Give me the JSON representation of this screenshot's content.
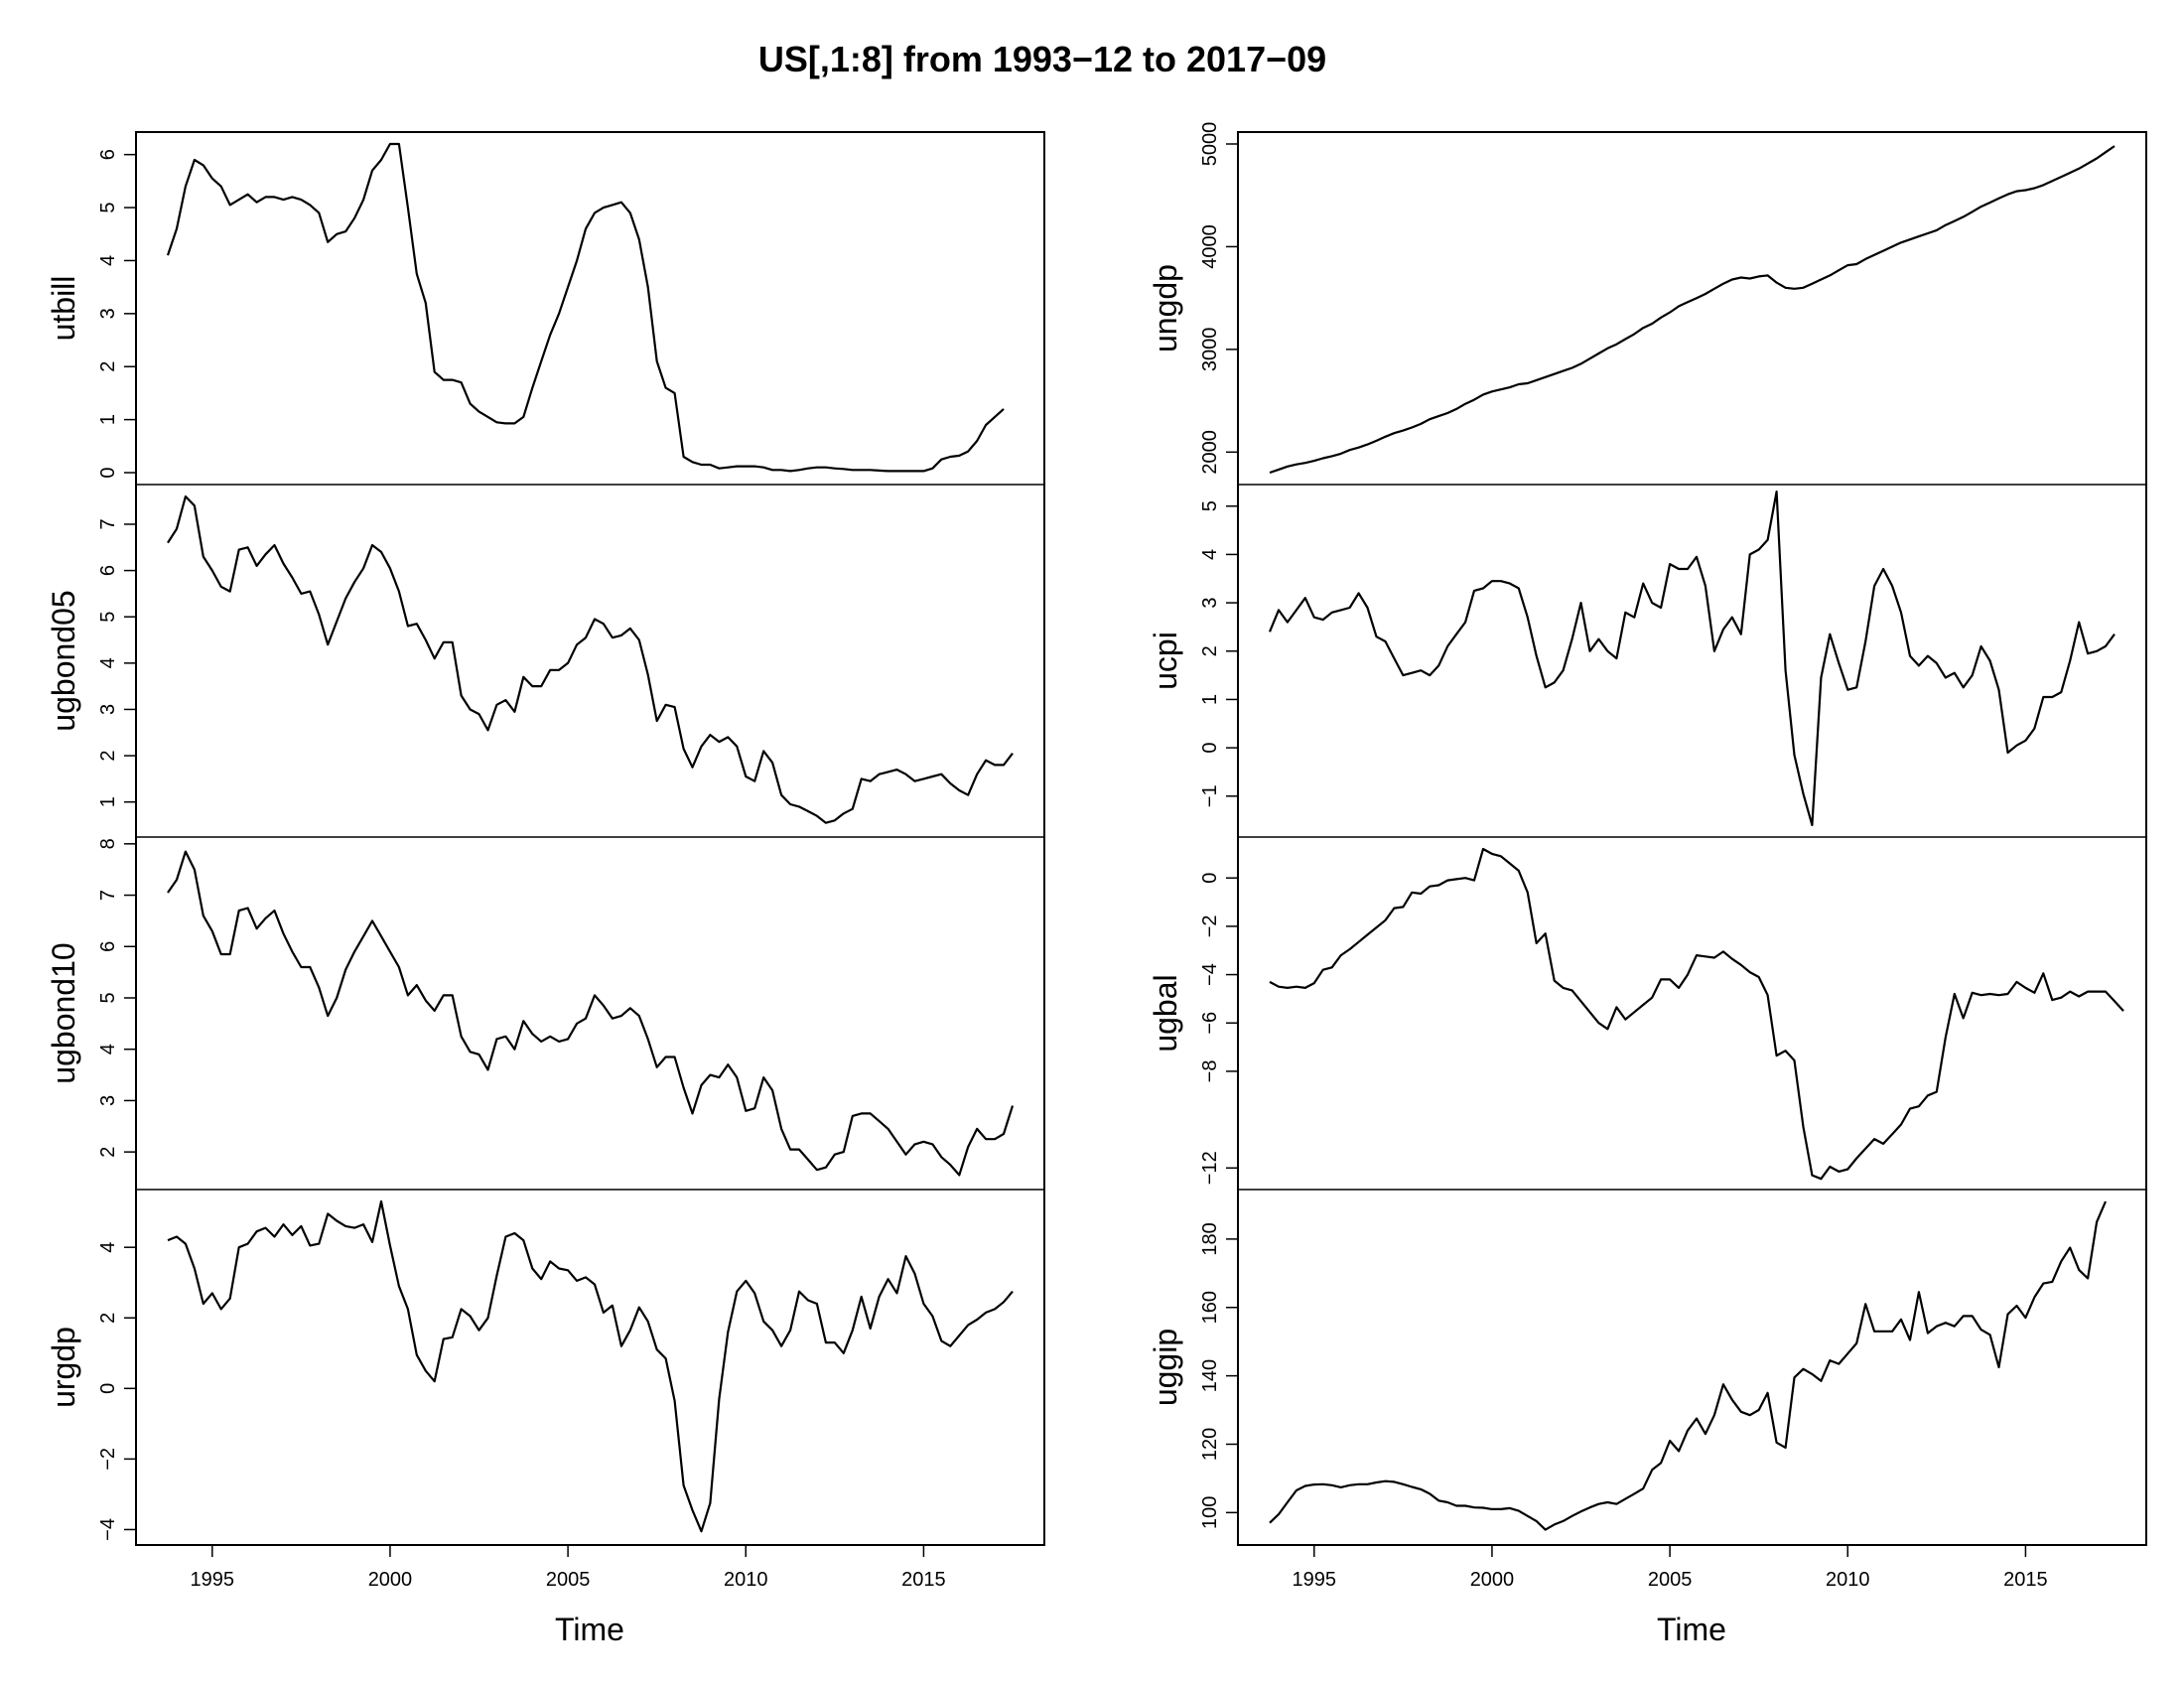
{
  "chart_data": {
    "type": "line",
    "title": "US[,1:8] from 1993−12 to 2017−09",
    "xlabel": "Time",
    "x_start": 1993.75,
    "x_step": 0.25,
    "xlim": [
      1993.75,
      2017.5
    ],
    "x_ticks": [
      1995,
      2000,
      2005,
      2010,
      2015
    ],
    "panels": [
      {
        "name": "utbill",
        "ylim": [
          0,
          6.2
        ],
        "yticks": [
          0,
          1,
          2,
          3,
          4,
          5,
          6
        ],
        "values": [
          4.1,
          4.6,
          5.4,
          5.9,
          5.8,
          5.55,
          5.4,
          5.05,
          5.15,
          5.25,
          5.1,
          5.2,
          5.2,
          5.15,
          5.2,
          5.15,
          5.05,
          4.9,
          4.35,
          4.5,
          4.55,
          4.8,
          5.15,
          5.7,
          5.9,
          6.2,
          6.2,
          5.0,
          3.75,
          3.2,
          1.9,
          1.75,
          1.75,
          1.7,
          1.3,
          1.15,
          1.05,
          0.95,
          0.93,
          0.93,
          1.05,
          1.6,
          2.1,
          2.6,
          3.0,
          3.5,
          4.0,
          4.6,
          4.9,
          5.0,
          5.05,
          5.1,
          4.9,
          4.4,
          3.5,
          2.1,
          1.6,
          1.5,
          0.3,
          0.2,
          0.15,
          0.15,
          0.08,
          0.1,
          0.12,
          0.12,
          0.12,
          0.1,
          0.05,
          0.05,
          0.03,
          0.05,
          0.08,
          0.1,
          0.1,
          0.08,
          0.07,
          0.05,
          0.05,
          0.05,
          0.04,
          0.03,
          0.03,
          0.03,
          0.03,
          0.03,
          0.08,
          0.25,
          0.3,
          0.32,
          0.4,
          0.6,
          0.9,
          1.05,
          1.2
        ]
      },
      {
        "name": "ugbond05",
        "ylim": [
          0.5,
          7.6
        ],
        "yticks": [
          1,
          2,
          3,
          4,
          5,
          6,
          7
        ],
        "values": [
          6.6,
          6.9,
          7.6,
          7.4,
          6.3,
          6.0,
          5.65,
          5.55,
          6.45,
          6.5,
          6.1,
          6.35,
          6.55,
          6.15,
          5.85,
          5.5,
          5.55,
          5.05,
          4.4,
          4.9,
          5.4,
          5.75,
          6.05,
          6.55,
          6.4,
          6.05,
          5.55,
          4.8,
          4.85,
          4.5,
          4.1,
          4.45,
          4.45,
          3.3,
          3.0,
          2.9,
          2.55,
          3.1,
          3.2,
          2.95,
          3.7,
          3.5,
          3.5,
          3.85,
          3.85,
          4.0,
          4.4,
          4.55,
          4.95,
          4.85,
          4.55,
          4.6,
          4.75,
          4.5,
          3.75,
          2.75,
          3.1,
          3.05,
          2.15,
          1.75,
          2.2,
          2.45,
          2.3,
          2.4,
          2.2,
          1.55,
          1.45,
          2.1,
          1.85,
          1.15,
          0.95,
          0.9,
          0.8,
          0.7,
          0.55,
          0.6,
          0.75,
          0.85,
          1.5,
          1.45,
          1.6,
          1.65,
          1.7,
          1.6,
          1.45,
          1.5,
          1.55,
          1.6,
          1.4,
          1.25,
          1.15,
          1.6,
          1.9,
          1.8,
          1.8,
          2.05
        ]
      },
      {
        "name": "ugbond10",
        "ylim": [
          1.5,
          7.9
        ],
        "yticks": [
          2,
          3,
          4,
          5,
          6,
          7,
          8
        ],
        "values": [
          7.05,
          7.3,
          7.85,
          7.5,
          6.6,
          6.3,
          5.85,
          5.85,
          6.7,
          6.75,
          6.35,
          6.55,
          6.7,
          6.25,
          5.9,
          5.6,
          5.6,
          5.2,
          4.65,
          5.0,
          5.55,
          5.9,
          6.2,
          6.5,
          6.2,
          5.9,
          5.6,
          5.05,
          5.25,
          4.95,
          4.75,
          5.05,
          5.05,
          4.25,
          3.95,
          3.9,
          3.6,
          4.2,
          4.25,
          4.0,
          4.55,
          4.3,
          4.15,
          4.25,
          4.15,
          4.2,
          4.5,
          4.6,
          5.05,
          4.85,
          4.6,
          4.65,
          4.8,
          4.65,
          4.2,
          3.65,
          3.85,
          3.85,
          3.25,
          2.75,
          3.3,
          3.5,
          3.45,
          3.7,
          3.45,
          2.8,
          2.85,
          3.45,
          3.2,
          2.45,
          2.05,
          2.05,
          1.85,
          1.65,
          1.7,
          1.95,
          2.0,
          2.7,
          2.75,
          2.75,
          2.6,
          2.45,
          2.2,
          1.95,
          2.15,
          2.2,
          2.15,
          1.9,
          1.75,
          1.55,
          2.1,
          2.45,
          2.25,
          2.25,
          2.35,
          2.9
        ]
      },
      {
        "name": "urgdp",
        "ylim": [
          -4.1,
          5.3
        ],
        "yticks": [
          -4,
          -2,
          0,
          2,
          4
        ],
        "values": [
          4.2,
          4.3,
          4.1,
          3.4,
          2.4,
          2.7,
          2.25,
          2.55,
          4.0,
          4.1,
          4.45,
          4.55,
          4.3,
          4.65,
          4.35,
          4.6,
          4.05,
          4.1,
          4.95,
          4.75,
          4.6,
          4.55,
          4.65,
          4.15,
          5.3,
          4.05,
          2.9,
          2.25,
          0.95,
          0.5,
          0.2,
          1.4,
          1.45,
          2.25,
          2.05,
          1.65,
          2.0,
          3.2,
          4.3,
          4.4,
          4.2,
          3.4,
          3.1,
          3.6,
          3.4,
          3.35,
          3.05,
          3.15,
          2.95,
          2.15,
          2.35,
          1.2,
          1.65,
          2.3,
          1.9,
          1.1,
          0.85,
          -0.35,
          -2.75,
          -3.45,
          -4.05,
          -3.25,
          -0.3,
          1.6,
          2.75,
          3.05,
          2.7,
          1.9,
          1.65,
          1.2,
          1.65,
          2.75,
          2.5,
          2.4,
          1.3,
          1.3,
          1.0,
          1.65,
          2.6,
          1.7,
          2.6,
          3.1,
          2.7,
          3.75,
          3.25,
          2.4,
          2.05,
          1.35,
          1.2,
          1.5,
          1.8,
          1.95,
          2.15,
          2.25,
          2.45,
          2.75
        ]
      },
      {
        "name": "ungdp",
        "ylim": [
          1800,
          5000
        ],
        "yticks": [
          2000,
          3000,
          4000,
          5000
        ],
        "values": [
          1800,
          1830,
          1860,
          1880,
          1895,
          1915,
          1940,
          1960,
          1985,
          2020,
          2045,
          2075,
          2110,
          2150,
          2185,
          2210,
          2240,
          2275,
          2320,
          2350,
          2380,
          2420,
          2470,
          2510,
          2560,
          2590,
          2610,
          2630,
          2660,
          2670,
          2700,
          2730,
          2760,
          2790,
          2820,
          2860,
          2910,
          2960,
          3010,
          3050,
          3100,
          3150,
          3210,
          3250,
          3310,
          3360,
          3420,
          3460,
          3500,
          3540,
          3590,
          3640,
          3680,
          3700,
          3690,
          3710,
          3720,
          3650,
          3600,
          3590,
          3600,
          3640,
          3680,
          3720,
          3770,
          3820,
          3830,
          3880,
          3920,
          3960,
          4000,
          4040,
          4070,
          4100,
          4130,
          4160,
          4210,
          4250,
          4290,
          4340,
          4390,
          4430,
          4470,
          4510,
          4540,
          4550,
          4570,
          4600,
          4640,
          4680,
          4720,
          4760,
          4810,
          4860,
          4920,
          4980
        ]
      },
      {
        "name": "ucpi",
        "ylim": [
          -1.6,
          5.2
        ],
        "yticks": [
          -1,
          0,
          1,
          2,
          3,
          4,
          5
        ],
        "values": [
          2.4,
          2.85,
          2.6,
          2.85,
          3.1,
          2.7,
          2.65,
          2.8,
          2.85,
          2.9,
          3.2,
          2.9,
          2.3,
          2.2,
          1.85,
          1.5,
          1.55,
          1.6,
          1.5,
          1.7,
          2.1,
          2.35,
          2.6,
          3.25,
          3.3,
          3.45,
          3.45,
          3.4,
          3.3,
          2.7,
          1.9,
          1.25,
          1.35,
          1.6,
          2.25,
          3.0,
          2.0,
          2.25,
          2.0,
          1.85,
          2.8,
          2.7,
          3.4,
          3.0,
          2.9,
          3.8,
          3.7,
          3.7,
          3.95,
          3.35,
          2.0,
          2.45,
          2.7,
          2.35,
          4.0,
          4.1,
          4.3,
          5.3,
          1.6,
          -0.15,
          -0.95,
          -1.6,
          1.45,
          2.35,
          1.75,
          1.2,
          1.25,
          2.2,
          3.35,
          3.7,
          3.35,
          2.8,
          1.9,
          1.7,
          1.9,
          1.75,
          1.45,
          1.55,
          1.25,
          1.5,
          2.1,
          1.8,
          1.2,
          -0.1,
          0.05,
          0.15,
          0.4,
          1.05,
          1.05,
          1.15,
          1.8,
          2.6,
          1.95,
          2.0,
          2.1,
          2.35
        ]
      },
      {
        "name": "ugbal",
        "ylim": [
          -12.4,
          1.2
        ],
        "yticks": [
          -12,
          -8,
          -6,
          -4,
          -2,
          0
        ],
        "values": [
          -4.3,
          -4.5,
          -4.55,
          -4.5,
          -4.55,
          -4.35,
          -3.8,
          -3.7,
          -3.2,
          -2.95,
          -2.65,
          -2.35,
          -2.05,
          -1.75,
          -1.25,
          -1.2,
          -0.6,
          -0.65,
          -0.35,
          -0.3,
          -0.1,
          -0.05,
          0.0,
          -0.1,
          1.2,
          1.0,
          0.9,
          0.6,
          0.3,
          -0.6,
          -2.7,
          -2.3,
          -4.25,
          -4.55,
          -4.65,
          -5.1,
          -5.55,
          -6.0,
          -6.25,
          -5.35,
          -5.85,
          -5.55,
          -5.25,
          -4.95,
          -4.2,
          -4.2,
          -4.55,
          -4.0,
          -3.2,
          -3.25,
          -3.3,
          -3.05,
          -3.35,
          -3.6,
          -3.9,
          -4.1,
          -4.85,
          -7.35,
          -7.15,
          -7.55,
          -10.3,
          -12.3,
          -12.45,
          -11.95,
          -12.15,
          -12.05,
          -11.6,
          -11.2,
          -10.8,
          -11.0,
          -10.6,
          -10.2,
          -9.55,
          -9.45,
          -9.0,
          -8.85,
          -6.6,
          -4.8,
          -5.8,
          -4.75,
          -4.85,
          -4.8,
          -4.85,
          -4.8,
          -4.3,
          -4.55,
          -4.75,
          -3.95,
          -5.05,
          -4.95,
          -4.7,
          -4.9,
          -4.7,
          -4.7,
          -4.7,
          -5.1,
          -5.5
        ]
      },
      {
        "name": "uggip",
        "ylim": [
          94,
          191
        ],
        "yticks": [
          100,
          120,
          140,
          160,
          180
        ],
        "values": [
          97,
          99.5,
          103,
          106.5,
          107.8,
          108.2,
          108.3,
          108,
          107.4,
          108,
          108.3,
          108.3,
          108.8,
          109.2,
          109,
          108.3,
          107.5,
          106.8,
          105.5,
          103.5,
          103,
          102,
          102,
          101.5,
          101.4,
          101,
          101,
          101.3,
          100.5,
          99,
          97.5,
          95,
          96.5,
          97.5,
          99,
          100.3,
          101.5,
          102.5,
          103,
          102.5,
          104,
          105.5,
          107,
          112.5,
          114.5,
          121,
          118,
          124,
          127.5,
          123,
          128.5,
          137.5,
          133,
          129.5,
          128.5,
          130,
          135,
          120.5,
          119,
          139.5,
          142,
          140.5,
          138.5,
          144.5,
          143.5,
          146.5,
          149.5,
          161,
          153,
          153,
          153,
          156.5,
          150.5,
          164.5,
          152.5,
          154.5,
          155.5,
          154.5,
          157.5,
          157.5,
          153.5,
          152,
          142.5,
          158,
          160.5,
          157,
          163,
          167,
          167.5,
          173.5,
          177.5,
          171,
          168.5,
          185,
          191
        ]
      }
    ]
  }
}
